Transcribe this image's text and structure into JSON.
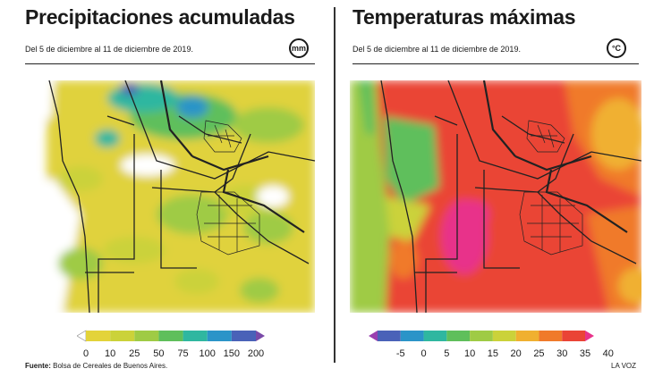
{
  "left_panel": {
    "title": "Precipitaciones acumuladas",
    "subtitle": "Del 5 de diciembre al 11 de diciembre de 2019.",
    "unit_badge": "mm",
    "legend": {
      "ticks": [
        "0",
        "10",
        "25",
        "50",
        "75",
        "100",
        "150",
        "200"
      ],
      "colors": [
        "#ffffff",
        "#e3d33a",
        "#cbd23a",
        "#9fcb45",
        "#5fbf5b",
        "#2fb7a0",
        "#2b94c8",
        "#4a62b8",
        "#7a4aa8"
      ]
    },
    "source_label": "Fuente:",
    "source_text": "Bolsa de Cereales de Buenos Aires."
  },
  "right_panel": {
    "title": "Temperaturas máximas",
    "subtitle": "Del 5 de diciembre al 11 de diciembre de 2019.",
    "unit_badge": "°C",
    "legend": {
      "ticks": [
        "-5",
        "0",
        "5",
        "10",
        "15",
        "20",
        "25",
        "30",
        "35",
        "40"
      ],
      "colors": [
        "#9a3fb0",
        "#4a62b8",
        "#2b94c8",
        "#2fb7a0",
        "#5fbf5b",
        "#9fcb45",
        "#cbd23a",
        "#f0b030",
        "#f07a2a",
        "#ea4436",
        "#e8328a"
      ]
    },
    "credit": "LA VOZ"
  }
}
